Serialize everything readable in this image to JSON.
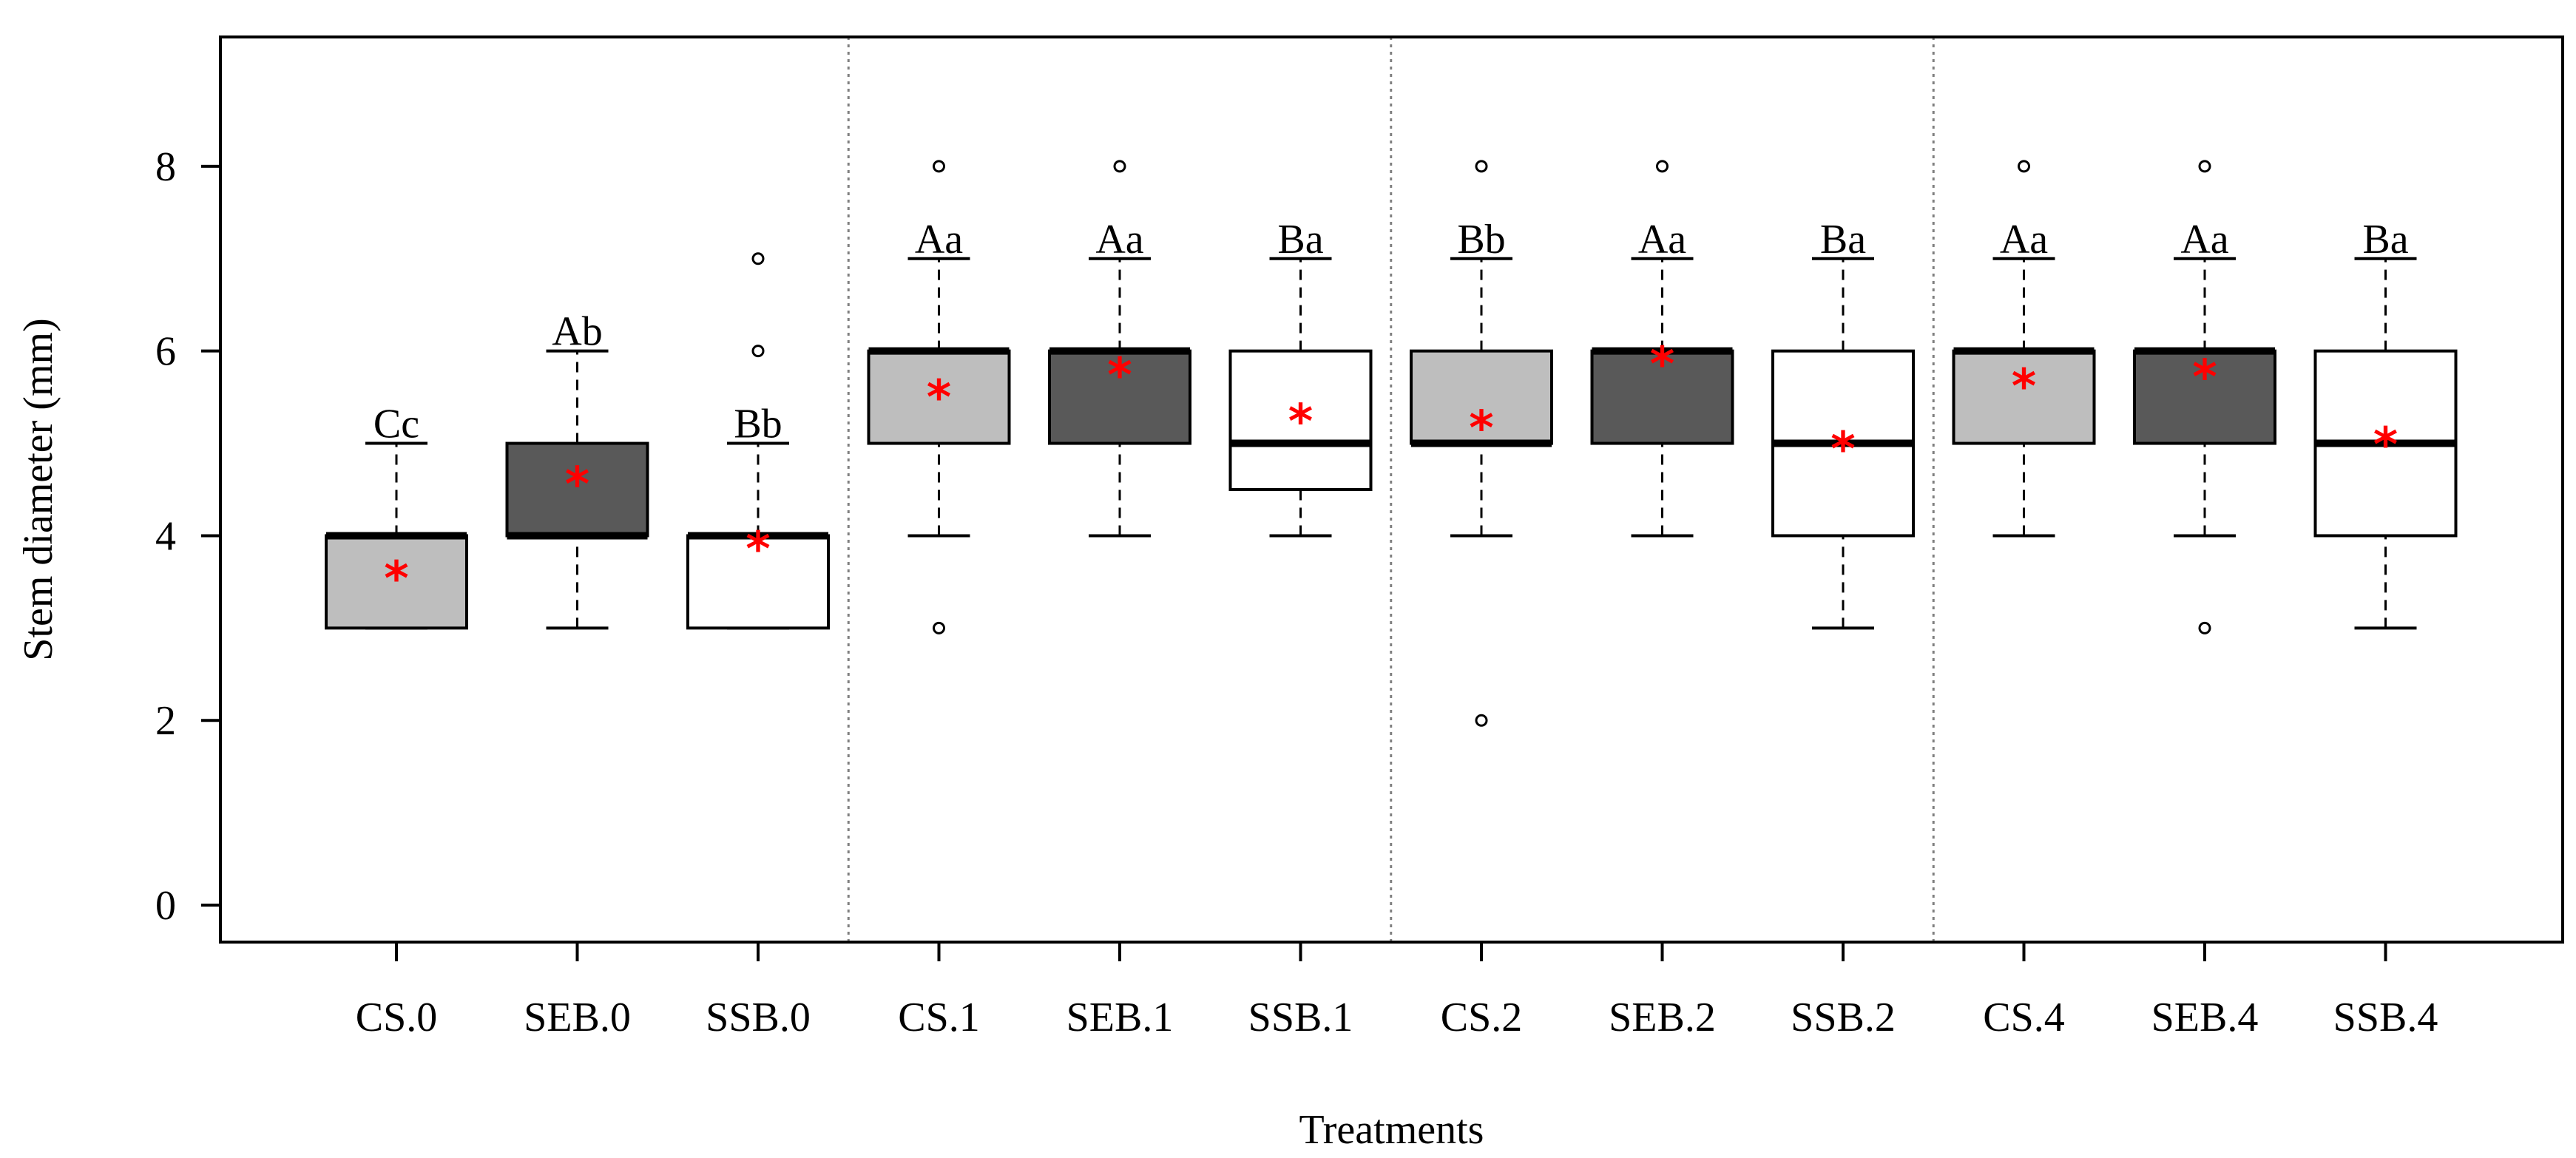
{
  "chart_data": {
    "type": "box",
    "title": "",
    "xlabel": "Treatments",
    "ylabel": "Stem diameter (mm)",
    "ylim": [
      -0.4,
      9.4
    ],
    "yticks": [
      0,
      2,
      4,
      6,
      8
    ],
    "groups": [
      "0",
      "1",
      "2",
      "4"
    ],
    "colors": {
      "CS": "#bebebe",
      "SEB": "#595959",
      "SSB": "#ffffff",
      "mean_marker": "#ff0000",
      "axis": "#000000",
      "separator": "#808080"
    },
    "mean_marker_symbol": "*",
    "boxes": [
      {
        "label": "CS.0",
        "group": "CS",
        "whisker_low": 3,
        "q1": 3,
        "median": 4,
        "q3": 4,
        "whisker_high": 5,
        "mean": 3.6,
        "outliers": [],
        "significance": "Cc"
      },
      {
        "label": "SEB.0",
        "group": "SEB",
        "whisker_low": 3,
        "q1": 4,
        "median": 4,
        "q3": 5,
        "whisker_high": 6,
        "mean": 4.62,
        "outliers": [],
        "significance": "Ab"
      },
      {
        "label": "SSB.0",
        "group": "SSB",
        "whisker_low": 3,
        "q1": 3,
        "median": 4,
        "q3": 4,
        "whisker_high": 5,
        "mean": 3.92,
        "outliers": [
          6,
          7
        ],
        "significance": "Bb"
      },
      {
        "label": "CS.1",
        "group": "CS",
        "whisker_low": 4,
        "q1": 5,
        "median": 6,
        "q3": 6,
        "whisker_high": 7,
        "mean": 5.56,
        "outliers": [
          3,
          8
        ],
        "significance": "Aa"
      },
      {
        "label": "SEB.1",
        "group": "SEB",
        "whisker_low": 4,
        "q1": 5,
        "median": 6,
        "q3": 6,
        "whisker_high": 7,
        "mean": 5.8,
        "outliers": [
          8
        ],
        "significance": "Aa"
      },
      {
        "label": "SSB.1",
        "group": "SSB",
        "whisker_low": 4,
        "q1": 4.5,
        "median": 5,
        "q3": 6,
        "whisker_high": 7,
        "mean": 5.3,
        "outliers": [],
        "significance": "Ba"
      },
      {
        "label": "CS.2",
        "group": "CS",
        "whisker_low": 4,
        "q1": 5,
        "median": 5,
        "q3": 6,
        "whisker_high": 7,
        "mean": 5.23,
        "outliers": [
          2,
          8
        ],
        "significance": "Bb"
      },
      {
        "label": "SEB.2",
        "group": "SEB",
        "whisker_low": 4,
        "q1": 5,
        "median": 6,
        "q3": 6,
        "whisker_high": 7,
        "mean": 5.92,
        "outliers": [
          8
        ],
        "significance": "Aa"
      },
      {
        "label": "SSB.2",
        "group": "SSB",
        "whisker_low": 3,
        "q1": 4,
        "median": 5,
        "q3": 6,
        "whisker_high": 7,
        "mean": 5.0,
        "outliers": [],
        "significance": "Ba"
      },
      {
        "label": "CS.4",
        "group": "CS",
        "whisker_low": 4,
        "q1": 5,
        "median": 6,
        "q3": 6,
        "whisker_high": 7,
        "mean": 5.68,
        "outliers": [
          8
        ],
        "significance": "Aa"
      },
      {
        "label": "SEB.4",
        "group": "SEB",
        "whisker_low": 4,
        "q1": 5,
        "median": 6,
        "q3": 6,
        "whisker_high": 7,
        "mean": 5.78,
        "outliers": [
          3,
          8
        ],
        "significance": "Aa"
      },
      {
        "label": "SSB.4",
        "group": "SSB",
        "whisker_low": 3,
        "q1": 4,
        "median": 5,
        "q3": 6,
        "whisker_high": 7,
        "mean": 5.05,
        "outliers": [],
        "significance": "Ba"
      }
    ]
  }
}
